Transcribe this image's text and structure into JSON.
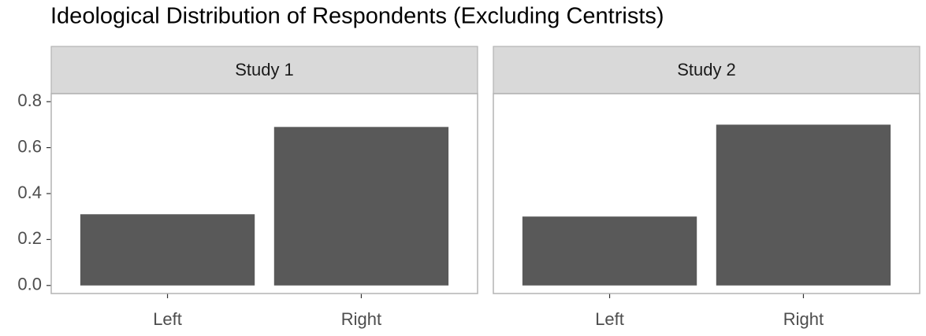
{
  "chart_data": [
    {
      "type": "bar",
      "title": "Ideological Distribution of Respondents (Excluding Centrists)",
      "facet": "Study 1",
      "categories": [
        "Left",
        "Right"
      ],
      "values": [
        0.31,
        0.69
      ],
      "color": "#595959",
      "ylim": [
        -0.035,
        0.835
      ],
      "yticks": [
        {
          "value": 0,
          "label": "0.0"
        },
        0.2,
        0.4,
        0.6,
        0.8
      ]
    },
    {
      "type": "bar",
      "facet": "Study 2",
      "categories": [
        "Left",
        "Right"
      ],
      "values": [
        0.3,
        0.7
      ],
      "color": "#595959",
      "ylim": [
        -0.035,
        0.835
      ]
    }
  ]
}
